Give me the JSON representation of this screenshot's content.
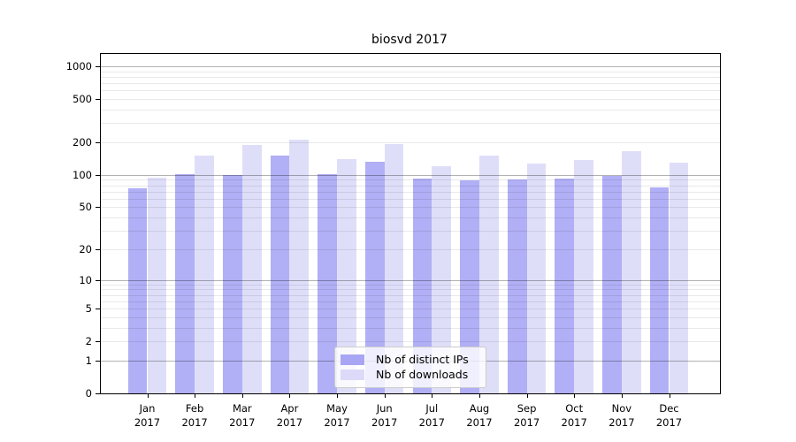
{
  "title": "biosvd 2017",
  "chart_data": {
    "type": "bar",
    "title": "biosvd 2017",
    "x_months": [
      "Jan",
      "Feb",
      "Mar",
      "Apr",
      "May",
      "Jun",
      "Jul",
      "Aug",
      "Sep",
      "Oct",
      "Nov",
      "Dec"
    ],
    "x_year": "2017",
    "series": [
      {
        "name": "Nb of distinct IPs",
        "color": "#a8a6f4",
        "values": [
          75,
          102,
          100,
          150,
          101,
          132,
          92,
          89,
          90,
          93,
          97,
          76
        ]
      },
      {
        "name": "Nb of downloads",
        "color": "#dcdaf8",
        "values": [
          95,
          152,
          190,
          210,
          141,
          193,
          120,
          150,
          128,
          138,
          165,
          130
        ]
      }
    ],
    "y_scale": "log1p",
    "y_ticks": [
      0,
      1,
      2,
      5,
      10,
      20,
      50,
      100,
      200,
      500,
      1000
    ],
    "y_major_gridlines": [
      1,
      10,
      100,
      1000
    ],
    "ylim": [
      0,
      1000
    ],
    "grid": true,
    "legend_position": "inside-bottom-center",
    "colors": {
      "background": "#ffffff",
      "spine": "#000000",
      "grid_major": "rgba(0,0,0,0.30)",
      "grid_minor": "rgba(0,0,0,0.085)",
      "bar_opacity": 0.9
    }
  }
}
